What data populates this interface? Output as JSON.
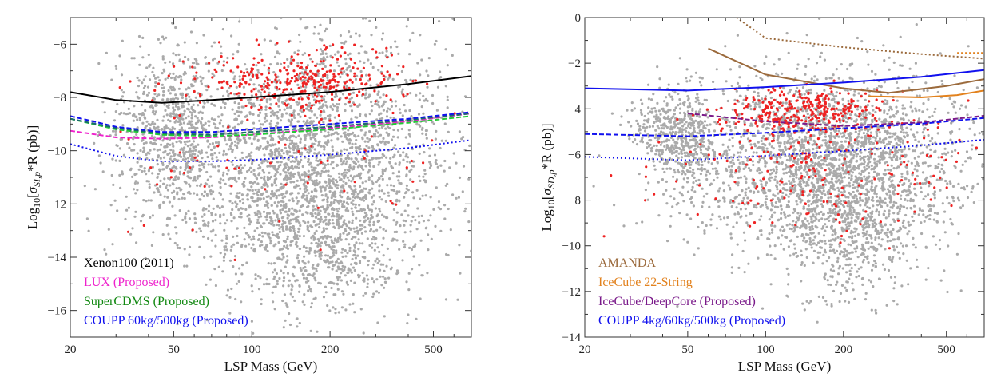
{
  "chart_data": [
    {
      "type": "scatter",
      "xlabel": "LSP Mass (GeV)",
      "ylabel": "Log10[σSI,p*R (pb)]",
      "ylabel_parts": {
        "prefix": "Log",
        "sub": "10",
        "open": "[",
        "sigma": "σ",
        "subscript": "SI,p",
        "rest": "*R (pb)]"
      },
      "x_scale": "log",
      "xlim": [
        20,
        700
      ],
      "ylim": [
        -17,
        -5
      ],
      "x_ticks": [
        {
          "v": 20,
          "label": "20"
        },
        {
          "v": 50,
          "label": "50"
        },
        {
          "v": 100,
          "label": "100"
        },
        {
          "v": 200,
          "label": "200"
        },
        {
          "v": 500,
          "label": "500"
        }
      ],
      "y_ticks": [
        {
          "v": -6,
          "label": "−6"
        },
        {
          "v": -8,
          "label": "−8"
        },
        {
          "v": -10,
          "label": "−10"
        },
        {
          "v": -12,
          "label": "−12"
        },
        {
          "v": -14,
          "label": "−14"
        },
        {
          "v": -16,
          "label": "−16"
        }
      ],
      "grid": false,
      "legend_placement": "bottom-left",
      "legend": [
        {
          "label": "Xenon100 (2011)",
          "color": "#000000"
        },
        {
          "label": "LUX (Proposed)",
          "color": "#ee22cc"
        },
        {
          "label": "SuperCDMS (Proposed)",
          "color": "#118811"
        },
        {
          "label": "COUPP 60kg/500kg (Proposed)",
          "color": "#1111ee"
        }
      ],
      "scatter_clouds": [
        {
          "color": "#aaaaaa",
          "xc": 45,
          "xs": 0.11,
          "yc": -9.3,
          "ys": 1.6,
          "count": 500
        },
        {
          "color": "#aaaaaa",
          "xc": 55,
          "xs": 0.04,
          "yc": -9.5,
          "ys": 1.4,
          "count": 150
        },
        {
          "color": "#aaaaaa",
          "xc": 165,
          "xs": 0.27,
          "yc": -10.3,
          "ys": 2.3,
          "count": 2600
        },
        {
          "color": "#aaaaaa",
          "xc": 200,
          "xs": 0.18,
          "yc": -13.5,
          "ys": 1.4,
          "count": 500
        },
        {
          "color": "#ee2222",
          "xc": 150,
          "xs": 0.2,
          "yc": -7.4,
          "ys": 0.55,
          "count": 330
        },
        {
          "color": "#ee2222",
          "xc": 130,
          "xs": 0.35,
          "yc": -10.2,
          "ys": 1.6,
          "count": 70
        }
      ],
      "series": [
        {
          "name": "Xenon100 (2011)",
          "color": "#000000",
          "dash": "solid",
          "x": [
            20,
            30,
            45,
            70,
            100,
            200,
            400,
            700
          ],
          "y": [
            -7.8,
            -8.1,
            -8.2,
            -8.1,
            -8.0,
            -7.8,
            -7.5,
            -7.2
          ]
        },
        {
          "name": "LUX (Proposed)",
          "color": "#ee22cc",
          "dash": "dashed",
          "x": [
            20,
            30,
            45,
            70,
            100,
            200,
            400,
            700
          ],
          "y": [
            -9.25,
            -9.5,
            -9.55,
            -9.5,
            -9.4,
            -9.15,
            -8.9,
            -8.6
          ]
        },
        {
          "name": "SuperCDMS (Proposed)",
          "color": "#22cc33",
          "dash": "dashed",
          "x": [
            20,
            30,
            45,
            70,
            100,
            200,
            400,
            700
          ],
          "y": [
            -8.8,
            -9.2,
            -9.4,
            -9.45,
            -9.4,
            -9.2,
            -8.95,
            -8.7
          ]
        },
        {
          "name": "",
          "color": "#1a6b6b",
          "dash": "dashed",
          "x": [
            20,
            30,
            45,
            70,
            100,
            200,
            400,
            700
          ],
          "y": [
            -8.8,
            -9.15,
            -9.35,
            -9.4,
            -9.3,
            -9.1,
            -8.85,
            -8.6
          ]
        },
        {
          "name": "COUPP 60kg (Proposed)",
          "color": "#1111ee",
          "dash": "dashed",
          "x": [
            20,
            30,
            45,
            70,
            100,
            200,
            400,
            700
          ],
          "y": [
            -8.7,
            -9.1,
            -9.3,
            -9.3,
            -9.2,
            -9.0,
            -8.8,
            -8.55
          ]
        },
        {
          "name": "COUPP 500kg (Proposed)",
          "color": "#1111ee",
          "dash": "dotted",
          "x": [
            20,
            30,
            45,
            70,
            100,
            200,
            400,
            700
          ],
          "y": [
            -9.75,
            -10.2,
            -10.4,
            -10.4,
            -10.35,
            -10.15,
            -9.9,
            -9.6
          ]
        }
      ]
    },
    {
      "type": "scatter",
      "xlabel": "LSP Mass (GeV)",
      "ylabel": "Log10[σSD,p*R (pb)]",
      "ylabel_parts": {
        "prefix": "Log",
        "sub": "10",
        "open": "[",
        "sigma": "σ",
        "subscript": "SD,p",
        "rest": "*R (pb)]"
      },
      "x_scale": "log",
      "xlim": [
        20,
        700
      ],
      "ylim": [
        -14,
        0
      ],
      "x_ticks": [
        {
          "v": 20,
          "label": "20"
        },
        {
          "v": 50,
          "label": "50"
        },
        {
          "v": 100,
          "label": "100"
        },
        {
          "v": 200,
          "label": "200"
        },
        {
          "v": 500,
          "label": "500"
        }
      ],
      "y_ticks": [
        {
          "v": 0,
          "label": "0"
        },
        {
          "v": -2,
          "label": "−2"
        },
        {
          "v": -4,
          "label": "−4"
        },
        {
          "v": -6,
          "label": "−6"
        },
        {
          "v": -8,
          "label": "−8"
        },
        {
          "v": -10,
          "label": "−10"
        },
        {
          "v": -12,
          "label": "−12"
        },
        {
          "v": -14,
          "label": "−14"
        }
      ],
      "grid": false,
      "legend_placement": "bottom-left",
      "legend": [
        {
          "label": "AMANDA",
          "color": "#9b6a3c"
        },
        {
          "label": "IceCube 22-String",
          "color": "#e2821e"
        },
        {
          "label": "IceCube/DeepCore (Proposed)",
          "color": "#7a1a8a"
        },
        {
          "label": "COUPP 4kg/60kg/500kg (Proposed)",
          "color": "#1111ee"
        }
      ],
      "scatter_clouds": [
        {
          "color": "#aaaaaa",
          "xc": 43,
          "xs": 0.05,
          "yc": -5.0,
          "ys": 0.9,
          "count": 220
        },
        {
          "color": "#aaaaaa",
          "xc": 52,
          "xs": 0.04,
          "yc": -5.5,
          "ys": 1.1,
          "count": 220
        },
        {
          "color": "#aaaaaa",
          "xc": 36,
          "xs": 0.06,
          "yc": -4.6,
          "ys": 0.6,
          "count": 80
        },
        {
          "color": "#aaaaaa",
          "xc": 170,
          "xs": 0.26,
          "yc": -6.2,
          "ys": 1.9,
          "count": 2600
        },
        {
          "color": "#aaaaaa",
          "xc": 210,
          "xs": 0.15,
          "yc": -9.5,
          "ys": 1.4,
          "count": 500
        },
        {
          "color": "#ee2222",
          "xc": 140,
          "xs": 0.16,
          "yc": -4.1,
          "ys": 0.5,
          "count": 300
        },
        {
          "color": "#ee2222",
          "xc": 160,
          "xs": 0.3,
          "yc": -6.5,
          "ys": 1.4,
          "count": 200
        }
      ],
      "series": [
        {
          "name": "AMANDA",
          "color": "#9b6a3c",
          "dash": "solid",
          "x": [
            60,
            100,
            200,
            300,
            500,
            700
          ],
          "y": [
            -1.35,
            -2.5,
            -3.1,
            -3.3,
            -3.0,
            -2.7
          ]
        },
        {
          "name": "AMANDA",
          "color": "#9b6a3c",
          "dash": "dotted",
          "x": [
            75,
            100,
            200,
            400,
            700
          ],
          "y": [
            0.1,
            -0.9,
            -1.3,
            -1.6,
            -1.8
          ]
        },
        {
          "name": "IceCube 22-String",
          "color": "#e2821e",
          "dash": "solid",
          "x": [
            250,
            400,
            550,
            700
          ],
          "y": [
            -3.45,
            -3.5,
            -3.4,
            -3.2
          ]
        },
        {
          "name": "IceCube 22-String",
          "color": "#e2821e",
          "dash": "dotted",
          "x": [
            550,
            700
          ],
          "y": [
            -1.55,
            -1.55
          ]
        },
        {
          "name": "IceCube/DeepCore (Proposed)",
          "color": "#7a1a8a",
          "dash": "dashed",
          "x": [
            50,
            100,
            200,
            400,
            700
          ],
          "y": [
            -4.2,
            -4.55,
            -4.75,
            -4.6,
            -4.3
          ]
        },
        {
          "name": "COUPP 4kg (Proposed)",
          "color": "#1111ee",
          "dash": "solid",
          "x": [
            20,
            50,
            100,
            200,
            400,
            700
          ],
          "y": [
            -3.1,
            -3.2,
            -3.05,
            -2.85,
            -2.6,
            -2.3
          ]
        },
        {
          "name": "COUPP 60kg (Proposed)",
          "color": "#1111ee",
          "dash": "dashed",
          "x": [
            20,
            50,
            100,
            200,
            400,
            700
          ],
          "y": [
            -5.1,
            -5.2,
            -5.05,
            -4.85,
            -4.65,
            -4.4
          ]
        },
        {
          "name": "COUPP 500kg (Proposed)",
          "color": "#1111ee",
          "dash": "dotted",
          "x": [
            20,
            50,
            100,
            200,
            400,
            700
          ],
          "y": [
            -6.1,
            -6.25,
            -6.05,
            -5.85,
            -5.6,
            -5.35
          ]
        }
      ]
    }
  ]
}
